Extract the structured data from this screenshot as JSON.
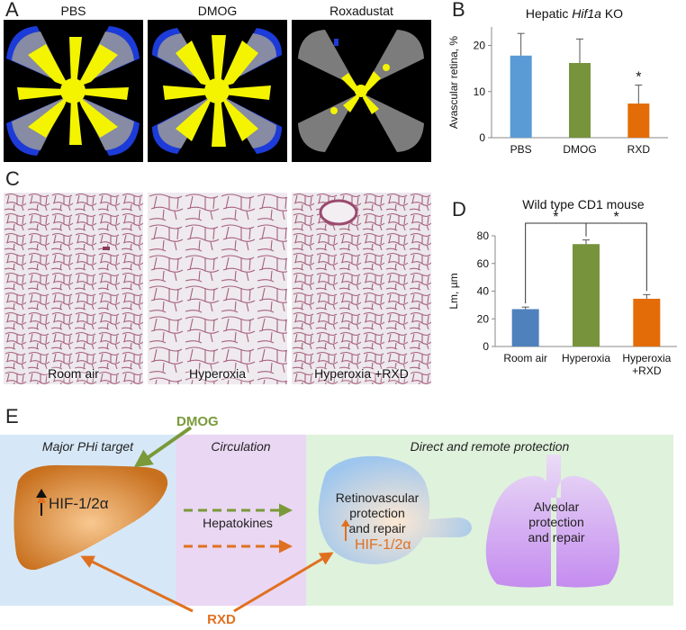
{
  "panels": {
    "A": {
      "letter": "A",
      "titles": [
        "PBS",
        "DMOG",
        "Roxadustat"
      ]
    },
    "B": {
      "letter": "B"
    },
    "C": {
      "letter": "C",
      "labels": [
        "Room air",
        "Hyperoxia",
        "Hyperoxia +RXD"
      ]
    },
    "D": {
      "letter": "D"
    },
    "E": {
      "letter": "E",
      "dmog": "DMOG",
      "rxd": "RXD",
      "section_titles": [
        "Major PHi target",
        "Circulation",
        "Direct and remote protection"
      ],
      "liver_text_prefix": "HIF-1/2",
      "alpha": "α",
      "hepatokines": "Hepatokines",
      "retina_text": [
        "Retinovascular",
        "protection",
        "and repair"
      ],
      "retina_hif_prefix": "HIF-1/2",
      "lung_text": [
        "Alveolar",
        "protection",
        "and repair"
      ],
      "colors": {
        "green": "#7a9a3a",
        "orange": "#e07020",
        "blue_bg": "#d6e8f7",
        "purple_bg": "#ead7f3",
        "green_bg": "#dff2dc"
      }
    }
  },
  "chart_data": [
    {
      "id": "B",
      "type": "bar",
      "title_prefix": "Hepatic ",
      "title_italic": "Hif1a",
      "title_suffix": " KO",
      "ylabel": "Avascular retina, %",
      "categories": [
        "PBS",
        "DMOG",
        "RXD"
      ],
      "values": [
        17.8,
        16.2,
        7.4
      ],
      "errors": [
        4.8,
        5.2,
        4.0
      ],
      "colors": [
        "#5b9bd5",
        "#77933c",
        "#e36c09"
      ],
      "significance": [
        false,
        false,
        true
      ],
      "star": "*",
      "ylim": [
        0,
        24
      ],
      "yticks": [
        0,
        10,
        20
      ]
    },
    {
      "id": "D",
      "type": "bar",
      "title": "Wild type CD1 mouse",
      "ylabel": "Lm, µm",
      "categories": [
        [
          "Room air"
        ],
        [
          "Hyperoxia"
        ],
        [
          "Hyperoxia",
          "+RXD"
        ]
      ],
      "values": [
        27,
        74,
        34.5
      ],
      "errors": [
        1.5,
        3.0,
        3.0
      ],
      "colors": [
        "#4f81bd",
        "#77933c",
        "#e36c09"
      ],
      "ylim": [
        0,
        80
      ],
      "yticks": [
        0,
        20,
        40,
        60,
        80
      ],
      "brackets": [
        [
          0,
          1,
          "*"
        ],
        [
          1,
          2,
          "*"
        ]
      ]
    }
  ]
}
